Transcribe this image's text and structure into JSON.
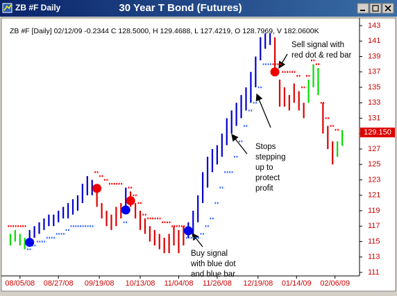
{
  "window": {
    "title": "ZB #F Daily"
  },
  "chart_data": {
    "type": "hlc_bar",
    "title": "30 Year T Bond (Futures)",
    "subtitle": "ZB #F [Daily] 02/12/09 -0.2344 C 128.5000, H 129.4688, L 127.4219, O 128.7969, V 182.0600K",
    "x": [
      0,
      2,
      4,
      6,
      8,
      10,
      12,
      14,
      16,
      18,
      20,
      22,
      24,
      26,
      28,
      30,
      32,
      34,
      36,
      38,
      40,
      42,
      44,
      46,
      48,
      50,
      52,
      54,
      56,
      58,
      60,
      62,
      64,
      66,
      68,
      70,
      72,
      74,
      76,
      78,
      80,
      82,
      84,
      86,
      88,
      90,
      92,
      94,
      96,
      98,
      100,
      102,
      104,
      106,
      108,
      110,
      112,
      114,
      116,
      118,
      120,
      122,
      124,
      126,
      128,
      130,
      132,
      134,
      136,
      138
    ],
    "high": [
      116,
      116.5,
      116,
      115.5,
      116.5,
      117,
      117.5,
      118,
      118.5,
      118.5,
      119,
      119.5,
      120,
      120.5,
      121,
      122.5,
      123.5,
      123,
      122,
      120,
      119,
      118.5,
      119.5,
      120,
      122,
      121.5,
      120,
      119,
      118,
      117,
      116.5,
      116,
      115.5,
      116,
      117,
      116.5,
      117,
      117.5,
      119,
      121,
      124,
      126,
      127,
      127.5,
      129,
      131,
      132,
      133,
      134,
      135,
      137,
      139,
      141.5,
      142,
      142,
      141.5,
      136,
      135,
      134,
      135.5,
      134.5,
      133,
      136,
      138,
      137.5,
      133,
      130,
      128,
      128,
      129.4688
    ],
    "low": [
      114.5,
      115,
      114.5,
      114,
      114.5,
      115.5,
      116,
      116.5,
      117,
      117,
      117.5,
      118,
      118,
      118.5,
      119,
      120,
      121,
      121,
      119.5,
      118,
      117,
      116.5,
      117,
      118,
      119,
      119.5,
      118,
      116.5,
      116,
      115,
      114.5,
      114,
      113.5,
      113.5,
      114.5,
      113.5,
      114.5,
      115.5,
      116,
      117.5,
      120,
      122,
      124,
      125,
      126,
      127.5,
      129,
      130,
      131,
      132,
      133,
      135,
      138.5,
      140,
      140.5,
      137,
      132.5,
      132.5,
      132,
      133,
      132,
      131,
      133,
      135,
      134,
      129,
      127,
      125,
      126,
      127.4219
    ],
    "bar_colors": [
      "#00dd00",
      "#00dd00",
      "#00dd00",
      "#00dd00",
      "#0000cc",
      "#0000cc",
      "#0000cc",
      "#0000cc",
      "#0000cc",
      "#0000cc",
      "#0000cc",
      "#0000cc",
      "#0000cc",
      "#0000cc",
      "#0000cc",
      "#0000cc",
      "#0000cc",
      "#0000cc",
      "#dd0000",
      "#dd0000",
      "#dd0000",
      "#dd0000",
      "#dd0000",
      "#dd0000",
      "#0000cc",
      "#dd0000",
      "#dd0000",
      "#dd0000",
      "#dd0000",
      "#dd0000",
      "#dd0000",
      "#dd0000",
      "#dd0000",
      "#dd0000",
      "#dd0000",
      "#dd0000",
      "#dd0000",
      "#0000cc",
      "#0000cc",
      "#0000cc",
      "#0000cc",
      "#0000cc",
      "#0000cc",
      "#0000cc",
      "#0000cc",
      "#0000cc",
      "#0000cc",
      "#0000cc",
      "#0000cc",
      "#0000cc",
      "#0000cc",
      "#0000cc",
      "#0000cc",
      "#0000cc",
      "#0000cc",
      "#dd0000",
      "#dd0000",
      "#dd0000",
      "#dd0000",
      "#dd0000",
      "#dd0000",
      "#dd0000",
      "#00dd00",
      "#00dd00",
      "#00dd00",
      "#dd0000",
      "#dd0000",
      "#dd0000",
      "#00dd00",
      "#00dd00"
    ],
    "stops": [
      117,
      117,
      117,
      117,
      114,
      114.5,
      115,
      115,
      115.5,
      115.5,
      116,
      116,
      116.5,
      117,
      117,
      117,
      117,
      117,
      124,
      123.5,
      123,
      122.5,
      122.5,
      122.5,
      117.5,
      122,
      121,
      120,
      118.5,
      118,
      118,
      118,
      117.5,
      117.5,
      117,
      117,
      117,
      115.5,
      115.5,
      115.5,
      116,
      117,
      118,
      120,
      122,
      124,
      124,
      126,
      128,
      130,
      132,
      133,
      135,
      138,
      138,
      138,
      138,
      137,
      137,
      137,
      136.5,
      135,
      136.5,
      138.5,
      138,
      133,
      131,
      130,
      129.5,
      null
    ],
    "stop_colors": {
      "up": "#3366ff",
      "down": "#ff0000"
    },
    "buy_signals": {
      "x": [
        8,
        48,
        74
      ],
      "values": [
        114.9,
        119.1,
        116.4
      ],
      "color": "#0000ee"
    },
    "sell_signals": {
      "x": [
        36,
        50,
        110
      ],
      "values": [
        121.9,
        120.3,
        137
      ],
      "color": "#ee0000"
    },
    "last_price": {
      "value": 129.15,
      "label": "129.150"
    },
    "annotations": [
      {
        "lines": [
          "Sell signal with",
          "red dot & red bar"
        ]
      },
      {
        "lines": [
          "Stops",
          "stepping",
          "up to",
          "protect",
          "profit"
        ]
      },
      {
        "lines": [
          "Buy signal",
          "with blue dot",
          "and blue bar"
        ]
      }
    ],
    "xlim": [
      -2,
      140
    ],
    "ylim": [
      111,
      143
    ],
    "xticks": [
      {
        "value": 4,
        "label": "08/05/08"
      },
      {
        "value": 20,
        "label": "08/27/08"
      },
      {
        "value": 37,
        "label": "09/19/08"
      },
      {
        "value": 54,
        "label": "10/13/08"
      },
      {
        "value": 70,
        "label": "11/04/08"
      },
      {
        "value": 86,
        "label": "11/26/08"
      },
      {
        "value": 103,
        "label": "12/19/08"
      },
      {
        "value": 119,
        "label": "01/14/09"
      },
      {
        "value": 135,
        "label": "02/06/09"
      }
    ],
    "yticks": [
      111,
      113,
      115,
      117,
      119,
      121,
      123,
      125,
      127,
      129,
      131,
      133,
      135,
      137,
      139,
      141,
      143
    ],
    "axis_label_color": "#cc0000"
  }
}
